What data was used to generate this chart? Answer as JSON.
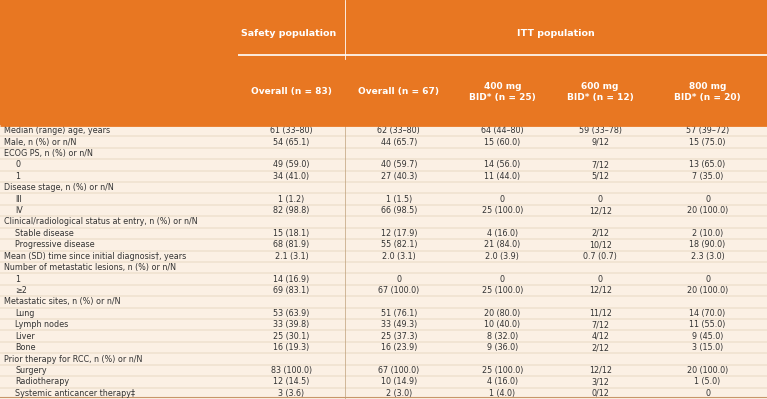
{
  "header_bg": "#E87722",
  "header_text_color": "#FFFFFF",
  "body_bg": "#FBF0E4",
  "body_text_color": "#333333",
  "divider_color": "#C8966A",
  "col_headers_row2": [
    "Overall (n = 83)",
    "Overall (n = 67)",
    "400 mg\nBID* (n = 25)",
    "600 mg\nBID* (n = 12)",
    "800 mg\nBID* (n = 20)"
  ],
  "rows": [
    {
      "label": "Median (range) age, years",
      "indent": false,
      "values": [
        "61 (33–80)",
        "62 (33–80)",
        "64 (44–80)",
        "59 (33–78)",
        "57 (39–72)"
      ]
    },
    {
      "label": "Male, n (%) or n/N",
      "indent": false,
      "values": [
        "54 (65.1)",
        "44 (65.7)",
        "15 (60.0)",
        "9/12",
        "15 (75.0)"
      ]
    },
    {
      "label": "ECOG PS, n (%) or n/N",
      "indent": false,
      "values": [
        "",
        "",
        "",
        "",
        ""
      ]
    },
    {
      "label": "0",
      "indent": true,
      "values": [
        "49 (59.0)",
        "40 (59.7)",
        "14 (56.0)",
        "7/12",
        "13 (65.0)"
      ]
    },
    {
      "label": "1",
      "indent": true,
      "values": [
        "34 (41.0)",
        "27 (40.3)",
        "11 (44.0)",
        "5/12",
        "7 (35.0)"
      ]
    },
    {
      "label": "Disease stage, n (%) or n/N",
      "indent": false,
      "values": [
        "",
        "",
        "",
        "",
        ""
      ]
    },
    {
      "label": "III",
      "indent": true,
      "values": [
        "1 (1.2)",
        "1 (1.5)",
        "0",
        "0",
        "0"
      ]
    },
    {
      "label": "IV",
      "indent": true,
      "values": [
        "82 (98.8)",
        "66 (98.5)",
        "25 (100.0)",
        "12/12",
        "20 (100.0)"
      ]
    },
    {
      "label": "Clinical/radiological status at entry, n (%) or n/N",
      "indent": false,
      "values": [
        "",
        "",
        "",
        "",
        ""
      ]
    },
    {
      "label": "Stable disease",
      "indent": true,
      "values": [
        "15 (18.1)",
        "12 (17.9)",
        "4 (16.0)",
        "2/12",
        "2 (10.0)"
      ]
    },
    {
      "label": "Progressive disease",
      "indent": true,
      "values": [
        "68 (81.9)",
        "55 (82.1)",
        "21 (84.0)",
        "10/12",
        "18 (90.0)"
      ]
    },
    {
      "label": "Mean (SD) time since initial diagnosis†, years",
      "indent": false,
      "values": [
        "2.1 (3.1)",
        "2.0 (3.1)",
        "2.0 (3.9)",
        "0.7 (0.7)",
        "2.3 (3.0)"
      ]
    },
    {
      "label": "Number of metastatic lesions, n (%) or n/N",
      "indent": false,
      "values": [
        "",
        "",
        "",
        "",
        ""
      ]
    },
    {
      "label": "1",
      "indent": true,
      "values": [
        "14 (16.9)",
        "0",
        "0",
        "0",
        "0"
      ]
    },
    {
      "label": "≥2",
      "indent": true,
      "values": [
        "69 (83.1)",
        "67 (100.0)",
        "25 (100.0)",
        "12/12",
        "20 (100.0)"
      ]
    },
    {
      "label": "Metastatic sites, n (%) or n/N",
      "indent": false,
      "values": [
        "",
        "",
        "",
        "",
        ""
      ]
    },
    {
      "label": "Lung",
      "indent": true,
      "values": [
        "53 (63.9)",
        "51 (76.1)",
        "20 (80.0)",
        "11/12",
        "14 (70.0)"
      ]
    },
    {
      "label": "Lymph nodes",
      "indent": true,
      "values": [
        "33 (39.8)",
        "33 (49.3)",
        "10 (40.0)",
        "7/12",
        "11 (55.0)"
      ]
    },
    {
      "label": "Liver",
      "indent": true,
      "values": [
        "25 (30.1)",
        "25 (37.3)",
        "8 (32.0)",
        "4/12",
        "9 (45.0)"
      ]
    },
    {
      "label": "Bone",
      "indent": true,
      "values": [
        "16 (19.3)",
        "16 (23.9)",
        "9 (36.0)",
        "2/12",
        "3 (15.0)"
      ]
    },
    {
      "label": "Prior therapy for RCC, n (%) or n/N",
      "indent": false,
      "values": [
        "",
        "",
        "",
        "",
        ""
      ]
    },
    {
      "label": "Surgery",
      "indent": true,
      "values": [
        "83 (100.0)",
        "67 (100.0)",
        "25 (100.0)",
        "12/12",
        "20 (100.0)"
      ]
    },
    {
      "label": "Radiotherapy",
      "indent": true,
      "values": [
        "12 (14.5)",
        "10 (14.9)",
        "4 (16.0)",
        "3/12",
        "1 (5.0)"
      ]
    },
    {
      "label": "Systemic anticancer therapy‡",
      "indent": true,
      "values": [
        "3 (3.6)",
        "2 (3.0)",
        "1 (4.0)",
        "0/12",
        "0"
      ]
    }
  ],
  "figsize": [
    7.67,
    3.99
  ],
  "dpi": 100
}
